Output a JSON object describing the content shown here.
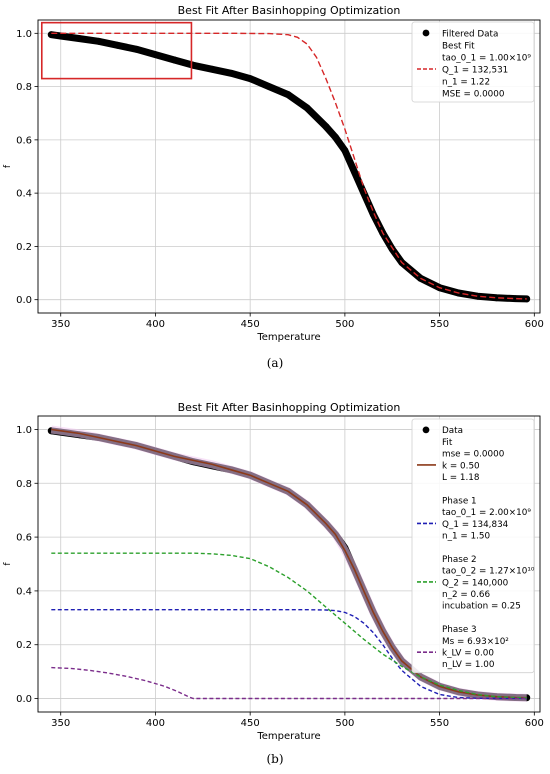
{
  "captions": {
    "a": "(a)",
    "b": "(b)"
  },
  "chart_data": [
    {
      "type": "line",
      "title": "Best Fit After Basinhopping Optimization",
      "xlabel": "Temperature",
      "ylabel": "f",
      "xlim": [
        338,
        603
      ],
      "ylim": [
        -0.05,
        1.05
      ],
      "xticks": [
        350,
        400,
        450,
        500,
        550,
        600
      ],
      "yticks": [
        0.0,
        0.2,
        0.4,
        0.6,
        0.8,
        1.0
      ],
      "grid": true,
      "legend_position": "top-right",
      "legend": [
        {
          "label": "Filtered Data",
          "kind": "dot",
          "color": "#000000"
        },
        {
          "label": "Best Fit",
          "kind": "text"
        },
        {
          "label": "tao_0_1 = 1.00×10⁹",
          "kind": "text"
        },
        {
          "label": "Q_1 = 132,531",
          "kind": "dash",
          "color": "#d62728"
        },
        {
          "label": "n_1 = 1.22",
          "kind": "text"
        },
        {
          "label": "MSE = 0.0000",
          "kind": "text"
        }
      ],
      "annotations": [
        {
          "type": "rectangle",
          "color": "#d62728",
          "x": [
            340,
            419
          ],
          "y": [
            0.83,
            1.04
          ]
        }
      ],
      "series": [
        {
          "name": "Filtered Data",
          "style": "markers",
          "color": "#000000",
          "x": [
            345,
            350,
            360,
            370,
            380,
            390,
            400,
            410,
            420,
            430,
            440,
            450,
            460,
            470,
            480,
            490,
            495,
            500,
            505,
            510,
            515,
            520,
            525,
            530,
            540,
            550,
            560,
            570,
            580,
            590,
            596
          ],
          "y": [
            0.995,
            0.99,
            0.98,
            0.97,
            0.955,
            0.94,
            0.92,
            0.9,
            0.88,
            0.865,
            0.85,
            0.83,
            0.8,
            0.77,
            0.72,
            0.65,
            0.61,
            0.56,
            0.48,
            0.4,
            0.32,
            0.25,
            0.19,
            0.14,
            0.08,
            0.045,
            0.025,
            0.013,
            0.007,
            0.004,
            0.003
          ]
        },
        {
          "name": "Best Fit",
          "style": "dashed",
          "color": "#d62728",
          "x": [
            345,
            400,
            440,
            460,
            470,
            475,
            480,
            485,
            490,
            495,
            500,
            505,
            510,
            515,
            520,
            530,
            540,
            550,
            560,
            570,
            580,
            590,
            596
          ],
          "y": [
            1.0,
            1.0,
            1.0,
            0.999,
            0.995,
            0.985,
            0.96,
            0.91,
            0.83,
            0.74,
            0.64,
            0.53,
            0.42,
            0.33,
            0.25,
            0.14,
            0.08,
            0.045,
            0.025,
            0.013,
            0.007,
            0.004,
            0.003
          ]
        }
      ]
    },
    {
      "type": "line",
      "title": "Best Fit After Basinhopping Optimization",
      "xlabel": "Temperature",
      "ylabel": "f",
      "xlim": [
        338,
        603
      ],
      "ylim": [
        -0.05,
        1.05
      ],
      "xticks": [
        350,
        400,
        450,
        500,
        550,
        600
      ],
      "yticks": [
        0.0,
        0.2,
        0.4,
        0.6,
        0.8,
        1.0
      ],
      "grid": true,
      "legend_position": "top-right",
      "legend": [
        {
          "label": "Data",
          "kind": "dot",
          "color": "#000000"
        },
        {
          "label": "Fit",
          "kind": "text"
        },
        {
          "label": "mse = 0.0000",
          "kind": "text"
        },
        {
          "label": "k = 0.50",
          "kind": "solid",
          "color": "#8c3a1a"
        },
        {
          "label": "L = 1.18",
          "kind": "text"
        },
        {
          "label": "",
          "kind": "gap"
        },
        {
          "label": "Phase 1",
          "kind": "text"
        },
        {
          "label": "tao_0_1 = 2.00×10⁹",
          "kind": "text"
        },
        {
          "label": "Q_1 = 134,834",
          "kind": "dash",
          "color": "#1f1fb4"
        },
        {
          "label": "n_1 = 1.50",
          "kind": "text"
        },
        {
          "label": "",
          "kind": "gap"
        },
        {
          "label": "Phase 2",
          "kind": "text"
        },
        {
          "label": "tao_0_2 = 1.27×10¹⁰",
          "kind": "text"
        },
        {
          "label": "Q_2 = 140,000",
          "kind": "dash",
          "color": "#2ca02c"
        },
        {
          "label": "n_2 = 0.66",
          "kind": "text"
        },
        {
          "label": "incubation = 0.25",
          "kind": "text"
        },
        {
          "label": "",
          "kind": "gap"
        },
        {
          "label": "Phase 3",
          "kind": "text"
        },
        {
          "label": "Ms = 6.93×10²",
          "kind": "text"
        },
        {
          "label": "k_LV = 0.00",
          "kind": "dash",
          "color": "#7b2d8b"
        },
        {
          "label": "n_LV = 1.00",
          "kind": "text"
        }
      ],
      "series": [
        {
          "name": "Data",
          "style": "markers",
          "color": "#000000",
          "x": [
            345,
            350,
            360,
            370,
            380,
            390,
            400,
            410,
            420,
            430,
            440,
            450,
            460,
            470,
            480,
            490,
            495,
            500,
            505,
            510,
            515,
            520,
            525,
            530,
            540,
            550,
            560,
            570,
            580,
            590,
            596
          ],
          "y": [
            0.995,
            0.99,
            0.98,
            0.97,
            0.955,
            0.94,
            0.92,
            0.9,
            0.88,
            0.865,
            0.85,
            0.83,
            0.8,
            0.77,
            0.72,
            0.65,
            0.61,
            0.56,
            0.48,
            0.4,
            0.32,
            0.25,
            0.19,
            0.14,
            0.08,
            0.045,
            0.025,
            0.013,
            0.007,
            0.004,
            0.003
          ]
        },
        {
          "name": "Fit",
          "style": "solid",
          "color": "#8c3a1a",
          "x": [
            345,
            350,
            360,
            370,
            380,
            390,
            400,
            410,
            420,
            430,
            440,
            450,
            460,
            470,
            480,
            490,
            495,
            500,
            505,
            510,
            515,
            520,
            525,
            530,
            540,
            550,
            560,
            570,
            580,
            590,
            596
          ],
          "y": [
            1.0,
            0.995,
            0.985,
            0.97,
            0.955,
            0.94,
            0.92,
            0.9,
            0.885,
            0.87,
            0.85,
            0.83,
            0.8,
            0.77,
            0.72,
            0.65,
            0.61,
            0.55,
            0.48,
            0.4,
            0.32,
            0.25,
            0.19,
            0.14,
            0.08,
            0.045,
            0.025,
            0.013,
            0.007,
            0.004,
            0.003
          ]
        },
        {
          "name": "Phase 1",
          "style": "dashed",
          "color": "#1f1fb4",
          "x": [
            345,
            400,
            450,
            480,
            490,
            495,
            500,
            505,
            510,
            515,
            520,
            525,
            530,
            540,
            550,
            560,
            570,
            596
          ],
          "y": [
            0.33,
            0.33,
            0.33,
            0.33,
            0.329,
            0.327,
            0.32,
            0.305,
            0.28,
            0.245,
            0.2,
            0.15,
            0.105,
            0.045,
            0.015,
            0.004,
            0.001,
            0.0
          ]
        },
        {
          "name": "Phase 2",
          "style": "dashed",
          "color": "#2ca02c",
          "x": [
            345,
            400,
            420,
            430,
            440,
            450,
            460,
            470,
            480,
            490,
            500,
            510,
            520,
            530,
            540,
            550,
            560,
            570,
            580,
            596
          ],
          "y": [
            0.54,
            0.54,
            0.54,
            0.538,
            0.532,
            0.52,
            0.49,
            0.45,
            0.4,
            0.34,
            0.28,
            0.22,
            0.165,
            0.12,
            0.08,
            0.05,
            0.03,
            0.015,
            0.007,
            0.002
          ]
        },
        {
          "name": "Phase 3",
          "style": "dashed",
          "color": "#7b2d8b",
          "x": [
            345,
            355,
            365,
            375,
            385,
            395,
            405,
            412,
            418,
            420,
            596
          ],
          "y": [
            0.115,
            0.112,
            0.105,
            0.095,
            0.082,
            0.066,
            0.045,
            0.025,
            0.005,
            0.0,
            0.0
          ]
        }
      ]
    }
  ]
}
